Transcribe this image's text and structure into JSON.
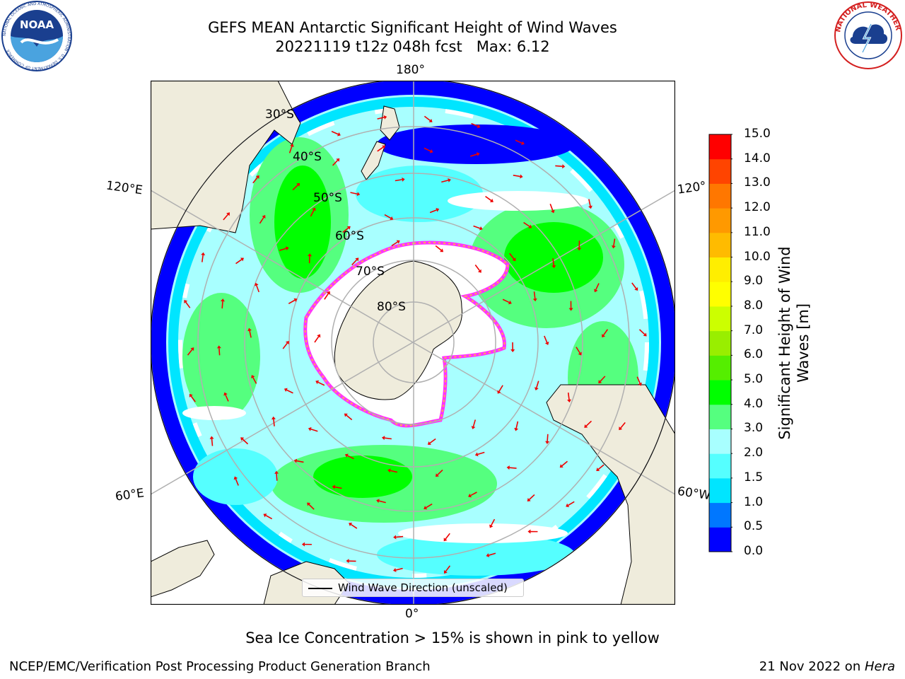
{
  "title_line1": "GEFS MEAN Antarctic Significant Height of Wind Waves",
  "title_line2": "20221119 t12z 048h fcst   Max: 6.12",
  "logos": {
    "noaa": {
      "text": "NOAA",
      "ring_text": "NATIONAL OCEANIC AND ATMOSPHERIC ADMINISTRATION · U.S. DEPARTMENT OF COMMERCE",
      "color": "#1a3f8f"
    },
    "nws": {
      "ring_text": "NATIONAL WEATHER SERVICE",
      "color": "#d42020"
    }
  },
  "map": {
    "projection": "south-polar-stereographic",
    "longitude_labels": {
      "top": "180°",
      "left_upper": "120°E",
      "right_upper": "120°",
      "left_lower": "60°E",
      "right_lower": "60°W",
      "bottom": "0°"
    },
    "latitude_labels": [
      "30°S",
      "40°S",
      "50°S",
      "60°S",
      "70°S",
      "80°S"
    ],
    "colors": {
      "ocean_land": "#efecdc",
      "graticule": "#b0b0b0",
      "arrows": "#ee0000",
      "sea_ice": [
        "#ff33ff",
        "#ffb347",
        "#ffee88"
      ]
    },
    "legend_label": "Wind Wave Direction (unscaled)"
  },
  "colorbar": {
    "label_line1": "Significant Height of Wind",
    "label_line2": "Waves [m]",
    "ticks": [
      "15.0",
      "14.0",
      "13.0",
      "12.0",
      "11.0",
      "10.0",
      "9.0",
      "8.0",
      "7.0",
      "6.0",
      "5.0",
      "4.0",
      "3.0",
      "2.0",
      "1.5",
      "1.0",
      "0.5",
      "0.0"
    ],
    "colors": [
      "#0000ff",
      "#0077ff",
      "#00e5ff",
      "#55ffff",
      "#a8ffff",
      "#55ff7f",
      "#00ff00",
      "#55ee00",
      "#99ee00",
      "#ccff00",
      "#ffff00",
      "#ffee00",
      "#ffbb00",
      "#ff9900",
      "#ff7700",
      "#ff4400",
      "#ff0000"
    ]
  },
  "footer": {
    "note": "Sea Ice Concentration > 15% is shown in pink to yellow",
    "credit": "NCEP/EMC/Verification Post Processing Product Generation Branch",
    "date_prefix": "21 Nov 2022 on ",
    "date_host": "Hera"
  }
}
